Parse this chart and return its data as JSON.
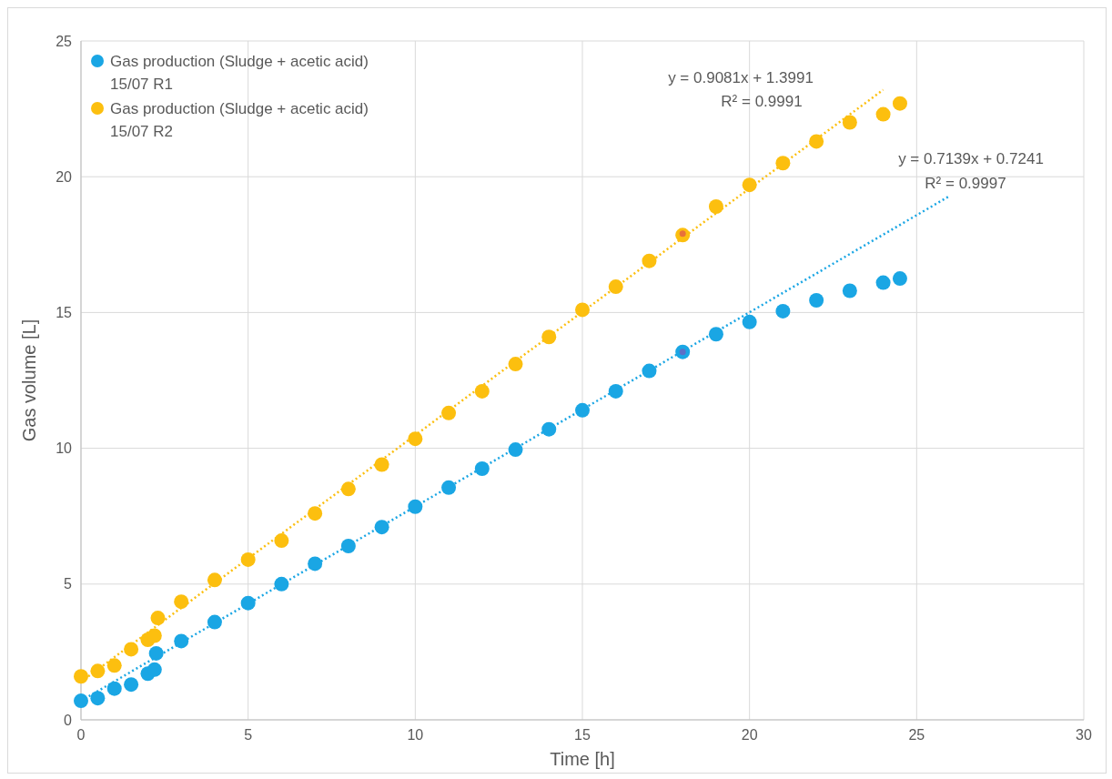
{
  "chart_data": {
    "type": "scatter",
    "xlabel": "Time [h]",
    "ylabel": "Gas volume [L]",
    "xlim": [
      0,
      30
    ],
    "ylim": [
      0,
      25
    ],
    "xticks": [
      0,
      5,
      10,
      15,
      20,
      25,
      30
    ],
    "yticks": [
      0,
      5,
      10,
      15,
      20,
      25
    ],
    "grid": true,
    "legend": "top left",
    "marker": "circle",
    "series": [
      {
        "name": "Gas production (Sludge + acetic acid) 15/07 R1",
        "color": "#1aa6e4",
        "x": [
          0,
          0.5,
          1,
          1.5,
          2,
          2.2,
          2.25,
          3,
          4,
          5,
          6,
          7,
          8,
          9,
          10,
          11,
          12,
          13,
          14,
          15,
          16,
          17,
          18,
          19,
          20,
          21,
          22,
          23,
          24,
          24.5
        ],
        "values": [
          0.7,
          0.8,
          1.15,
          1.3,
          1.7,
          1.85,
          2.45,
          2.9,
          3.6,
          4.3,
          5.0,
          5.75,
          6.4,
          7.1,
          7.85,
          8.55,
          9.25,
          9.95,
          10.7,
          11.4,
          12.1,
          12.85,
          13.55,
          14.2,
          14.65,
          15.05,
          15.45,
          15.8,
          16.1,
          16.25
        ]
      },
      {
        "name": "Gas production (Sludge + acetic acid) 15/07 R2",
        "color": "#fcbf0f",
        "x": [
          0,
          0.5,
          1,
          1.5,
          2,
          2.2,
          2.3,
          3,
          4,
          5,
          6,
          7,
          8,
          9,
          10,
          11,
          12,
          13,
          14,
          15,
          16,
          17,
          18,
          19,
          20,
          21,
          22,
          23,
          24,
          24.5
        ],
        "values": [
          1.6,
          1.8,
          2.0,
          2.6,
          2.95,
          3.1,
          3.75,
          4.35,
          5.15,
          5.9,
          6.6,
          7.6,
          8.5,
          9.4,
          10.35,
          11.3,
          12.1,
          13.1,
          14.1,
          15.1,
          15.95,
          16.9,
          17.85,
          18.9,
          19.7,
          20.5,
          21.3,
          22.0,
          22.3,
          22.7
        ]
      },
      {
        "type": "line",
        "color": "#1aa6e4",
        "line_style": "dotted",
        "marker": "none",
        "x": [
          0,
          26
        ],
        "values": [
          0.7,
          19.3
        ]
      },
      {
        "type": "line",
        "color": "#fcbf0f",
        "line_style": "dotted",
        "marker": "none",
        "x": [
          0,
          24
        ],
        "values": [
          1.4,
          23.2
        ]
      },
      {
        "color": "#e8713a",
        "marker": "circle",
        "x": [
          18
        ],
        "values": [
          17.9
        ]
      },
      {
        "color": "#5a6fc8",
        "marker": "circle",
        "x": [
          18
        ],
        "values": [
          13.55
        ]
      }
    ],
    "annotations": [
      "y = 0.9081x + 1.3991",
      "R² = 0.9991",
      "y = 0.7139x + 0.7241",
      "R² = 0.9997"
    ]
  }
}
